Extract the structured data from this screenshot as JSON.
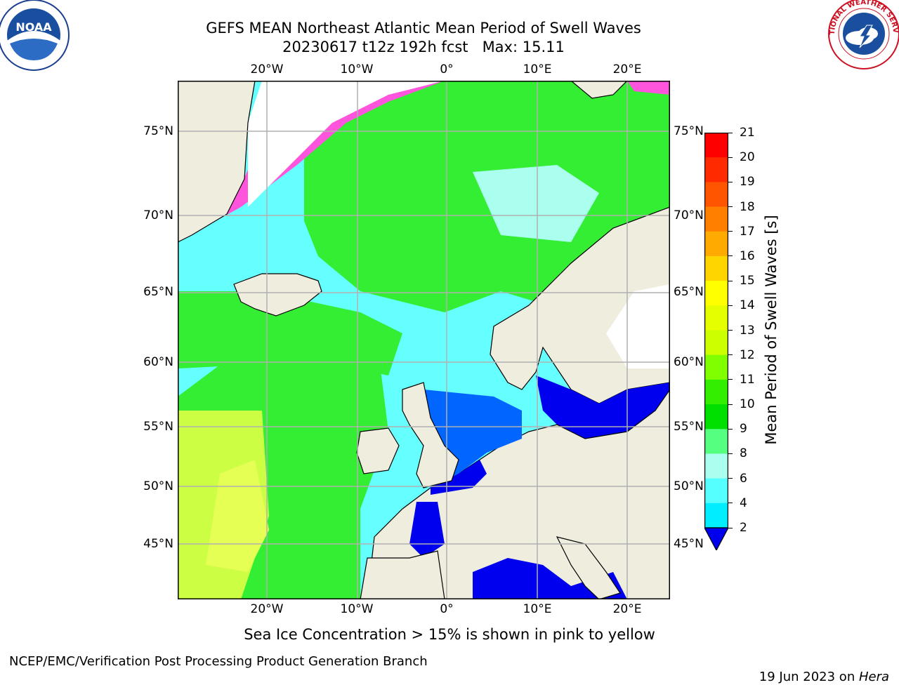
{
  "header": {
    "title_line1": "GEFS MEAN Northeast Atlantic Mean Period of Swell Waves",
    "title_line2": "20230617 t12z 192h fcst   Max: 15.11"
  },
  "axes": {
    "lon_labels": [
      "20°W",
      "10°W",
      "0°",
      "10°E",
      "20°E"
    ],
    "lat_labels": [
      "75°N",
      "70°N",
      "65°N",
      "60°N",
      "55°N",
      "50°N",
      "45°N"
    ]
  },
  "colorbar": {
    "label": "Mean Period of Swell Waves [s]",
    "ticks": [
      "21",
      "20",
      "19",
      "18",
      "17",
      "16",
      "15",
      "14",
      "13",
      "12",
      "11",
      "10",
      "9",
      "8",
      "6",
      "4",
      "2"
    ],
    "colors": [
      "#ff0000",
      "#ff2a00",
      "#ff5500",
      "#ff8000",
      "#ffaa00",
      "#ffd500",
      "#ffff00",
      "#e6ff00",
      "#ccff00",
      "#80ff00",
      "#33ee00",
      "#00e000",
      "#55ff80",
      "#aaffee",
      "#55ffff",
      "#00eeff",
      "#00aaff",
      "#0066ff"
    ],
    "under_color": "#0000ee"
  },
  "map_colors": {
    "land": "#efedde",
    "ocean_cyan": "#66ffff",
    "ocean_green": "#33ee33",
    "ocean_yellow": "#ccff44",
    "ocean_blue": "#0055ff",
    "ice_pink": "#ff55dd",
    "ice_white": "#ffffff",
    "grid": "#b0b0b0"
  },
  "logos": {
    "left_text": "NOAA",
    "right_ring_text": "NATIONAL WEATHER SERVICE"
  },
  "note": "Sea Ice Concentration > 15% is shown in pink to yellow",
  "footer": {
    "left": "NCEP/EMC/Verification Post Processing Product Generation Branch",
    "right_date": "19 Jun 2023 on ",
    "right_machine": "Hera"
  }
}
